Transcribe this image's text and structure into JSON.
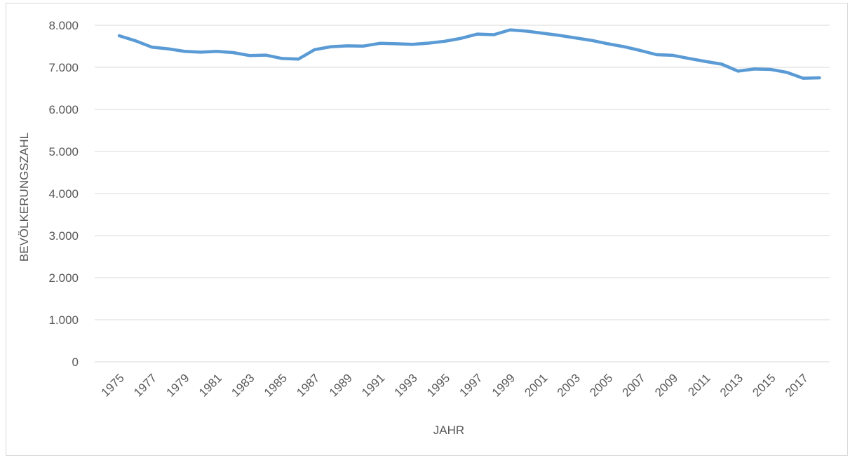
{
  "chart_data": {
    "type": "line",
    "title": "",
    "xlabel": "JAHR",
    "ylabel": "BEVÖLKERUNGSZAHL",
    "ylim": [
      0,
      8000
    ],
    "y_ticks": [
      0,
      1000,
      2000,
      3000,
      4000,
      5000,
      6000,
      7000,
      8000
    ],
    "y_tick_labels": [
      "0",
      "1.000",
      "2.000",
      "3.000",
      "4.000",
      "5.000",
      "6.000",
      "7.000",
      "8.000"
    ],
    "x_tick_labels": [
      "1975",
      "1977",
      "1979",
      "1981",
      "1983",
      "1985",
      "1987",
      "1989",
      "1991",
      "1993",
      "1995",
      "1997",
      "1999",
      "2001",
      "2003",
      "2005",
      "2007",
      "2009",
      "2011",
      "2013",
      "2015",
      "2017"
    ],
    "grid": "horizontal",
    "legend": "none",
    "line_color": "#5b9bd5",
    "x": [
      1975,
      1976,
      1977,
      1978,
      1979,
      1980,
      1981,
      1982,
      1983,
      1984,
      1985,
      1986,
      1987,
      1988,
      1989,
      1990,
      1991,
      1992,
      1993,
      1994,
      1995,
      1996,
      1997,
      1998,
      1999,
      2000,
      2001,
      2002,
      2003,
      2004,
      2005,
      2006,
      2007,
      2008,
      2009,
      2010,
      2011,
      2012,
      2013,
      2014,
      2015,
      2016,
      2017,
      2018
    ],
    "series": [
      {
        "values": [
          7750,
          7630,
          7480,
          7440,
          7380,
          7360,
          7380,
          7350,
          7280,
          7290,
          7210,
          7195,
          7420,
          7490,
          7510,
          7505,
          7570,
          7560,
          7545,
          7575,
          7620,
          7690,
          7790,
          7775,
          7890,
          7860,
          7810,
          7760,
          7700,
          7640,
          7560,
          7490,
          7400,
          7300,
          7285,
          7210,
          7140,
          7075,
          6910,
          6960,
          6950,
          6880,
          6740,
          6750
        ]
      }
    ]
  }
}
